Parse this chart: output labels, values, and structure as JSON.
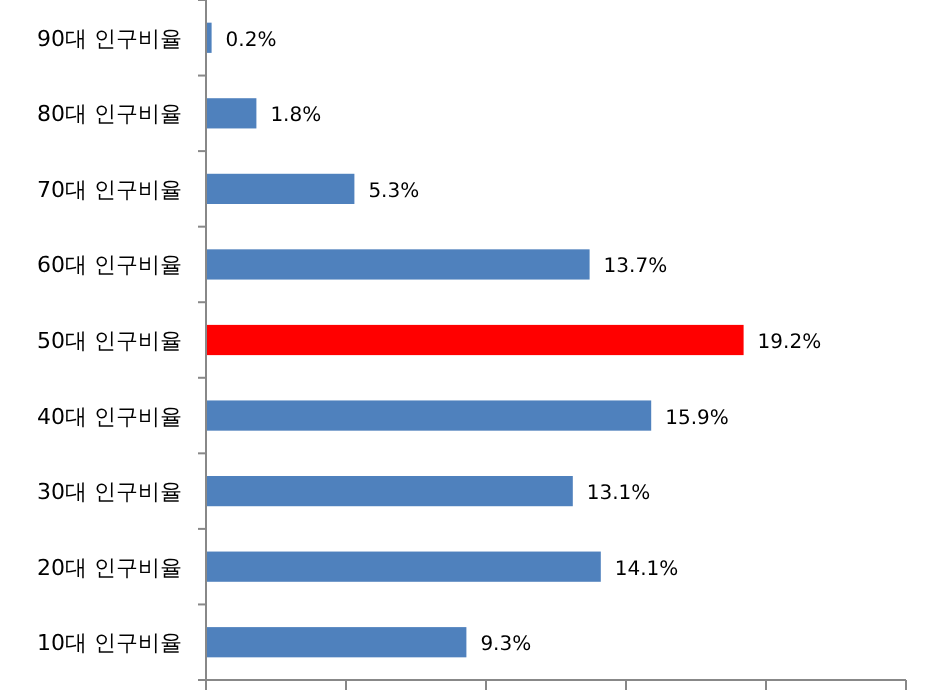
{
  "chart_data": {
    "type": "bar",
    "orientation": "horizontal",
    "categories": [
      "90대 인구비율",
      "80대 인구비율",
      "70대 인구비율",
      "60대 인구비율",
      "50대 인구비율",
      "40대 인구비율",
      "30대 인구비율",
      "20대 인구비율",
      "10대 인구비율"
    ],
    "values": [
      0.2,
      1.8,
      5.3,
      13.7,
      19.2,
      15.9,
      13.1,
      14.1,
      9.3
    ],
    "colors": [
      "#4f81bd",
      "#4f81bd",
      "#4f81bd",
      "#4f81bd",
      "#ff0000",
      "#4f81bd",
      "#4f81bd",
      "#4f81bd",
      "#4f81bd"
    ],
    "value_labels": [
      "0.2%",
      "1.8%",
      "5.3%",
      "13.7%",
      "19.2%",
      "15.9%",
      "13.1%",
      "14.1%",
      "9.3%"
    ],
    "xlim": [
      0,
      25
    ],
    "xticks": [
      {
        "value": 0,
        "label": null
      },
      {
        "value": 5,
        "label": null
      },
      {
        "value": 10,
        "label": null
      },
      {
        "value": 15,
        "label": null
      },
      {
        "value": 20,
        "label": null
      },
      {
        "value": 25,
        "label": null
      }
    ],
    "tick_labels": "y",
    "grid": false
  }
}
